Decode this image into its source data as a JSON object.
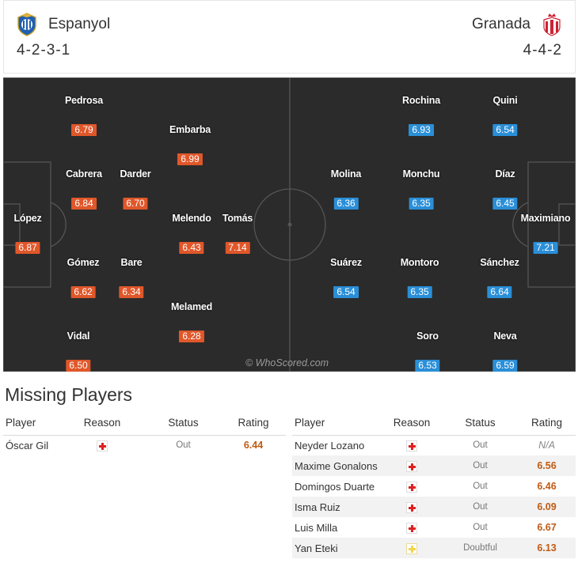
{
  "home": {
    "name": "Espanyol",
    "formation": "4-2-3-1",
    "crest": "espanyol-crest-icon"
  },
  "away": {
    "name": "Granada",
    "formation": "4-4-2",
    "crest": "granada-crest-icon"
  },
  "colors": {
    "home_rating": "#e0572a",
    "away_rating": "#2a8fd8",
    "pitch": "#2b2b2b"
  },
  "pitch": {
    "watermark": "© WhoScored.com",
    "home_players": [
      {
        "name": "Pedrosa",
        "rating": "6.79"
      },
      {
        "name": "Embarba",
        "rating": "6.99"
      },
      {
        "name": "Cabrera",
        "rating": "6.84"
      },
      {
        "name": "Darder",
        "rating": "6.70"
      },
      {
        "name": "López",
        "rating": "6.87"
      },
      {
        "name": "Melendo",
        "rating": "6.43"
      },
      {
        "name": "Tomás",
        "rating": "7.14"
      },
      {
        "name": "Gómez",
        "rating": "6.62"
      },
      {
        "name": "Bare",
        "rating": "6.34"
      },
      {
        "name": "Melamed",
        "rating": "6.28"
      },
      {
        "name": "Vidal",
        "rating": "6.50"
      }
    ],
    "away_players": [
      {
        "name": "Rochina",
        "rating": "6.93"
      },
      {
        "name": "Quini",
        "rating": "6.54"
      },
      {
        "name": "Molina",
        "rating": "6.36"
      },
      {
        "name": "Monchu",
        "rating": "6.35"
      },
      {
        "name": "Díaz",
        "rating": "6.45"
      },
      {
        "name": "Maximiano",
        "rating": "7.21"
      },
      {
        "name": "Suárez",
        "rating": "6.54"
      },
      {
        "name": "Montoro",
        "rating": "6.35"
      },
      {
        "name": "Sánchez",
        "rating": "6.64"
      },
      {
        "name": "Soro",
        "rating": "6.53"
      },
      {
        "name": "Neva",
        "rating": "6.59"
      }
    ]
  },
  "missing": {
    "title": "Missing Players",
    "headers": {
      "player": "Player",
      "reason": "Reason",
      "status": "Status",
      "rating": "Rating"
    },
    "home": [
      {
        "player": "Óscar Gil",
        "reason": "injury",
        "status": "Out",
        "rating": "6.44"
      }
    ],
    "away": [
      {
        "player": "Neyder Lozano",
        "reason": "injury",
        "status": "Out",
        "rating": "N/A"
      },
      {
        "player": "Maxime Gonalons",
        "reason": "injury",
        "status": "Out",
        "rating": "6.56"
      },
      {
        "player": "Domingos Duarte",
        "reason": "injury",
        "status": "Out",
        "rating": "6.46"
      },
      {
        "player": "Isma Ruiz",
        "reason": "injury",
        "status": "Out",
        "rating": "6.09"
      },
      {
        "player": "Luis Milla",
        "reason": "injury",
        "status": "Out",
        "rating": "6.67"
      },
      {
        "player": "Yan Eteki",
        "reason": "doubtful",
        "status": "Doubtful",
        "rating": "6.13"
      }
    ]
  }
}
